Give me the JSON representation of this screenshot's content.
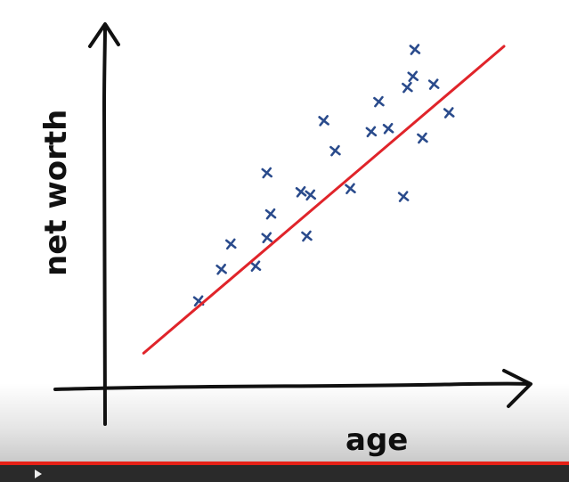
{
  "colors": {
    "ink": "#111111",
    "points": "#2a4b8c",
    "fit_line": "#e0242a",
    "progress": "#e62117"
  },
  "player": {
    "progress_fraction": 1.0,
    "play_icon": "play-icon"
  },
  "chart_data": {
    "type": "scatter",
    "title": "",
    "xlabel": "age",
    "ylabel": "net worth",
    "xlim": [
      0,
      100
    ],
    "ylim": [
      0,
      100
    ],
    "grid": false,
    "legend": "none",
    "series": [
      {
        "values": [
          {
            "x": 19.5,
            "y": 19.5
          },
          {
            "x": 25.5,
            "y": 29.5
          },
          {
            "x": 28.0,
            "y": 37.5
          },
          {
            "x": 34.5,
            "y": 30.5
          },
          {
            "x": 37.5,
            "y": 39.5
          },
          {
            "x": 38.5,
            "y": 47.0
          },
          {
            "x": 37.5,
            "y": 60.0
          },
          {
            "x": 48.0,
            "y": 40.0
          },
          {
            "x": 49.0,
            "y": 53.0
          },
          {
            "x": 46.5,
            "y": 54.0
          },
          {
            "x": 52.5,
            "y": 76.5
          },
          {
            "x": 55.5,
            "y": 67.0
          },
          {
            "x": 59.5,
            "y": 55.0
          },
          {
            "x": 65.0,
            "y": 73.0
          },
          {
            "x": 67.0,
            "y": 82.5
          },
          {
            "x": 69.5,
            "y": 74.0
          },
          {
            "x": 73.5,
            "y": 52.5
          },
          {
            "x": 74.5,
            "y": 87.0
          },
          {
            "x": 76.0,
            "y": 90.5
          },
          {
            "x": 78.5,
            "y": 71.0
          },
          {
            "x": 76.5,
            "y": 99.0
          },
          {
            "x": 81.5,
            "y": 88.0
          },
          {
            "x": 85.5,
            "y": 79.0
          }
        ]
      }
    ],
    "fit_line": {
      "x": [
        5,
        100
      ],
      "y": [
        3,
        100
      ]
    }
  }
}
